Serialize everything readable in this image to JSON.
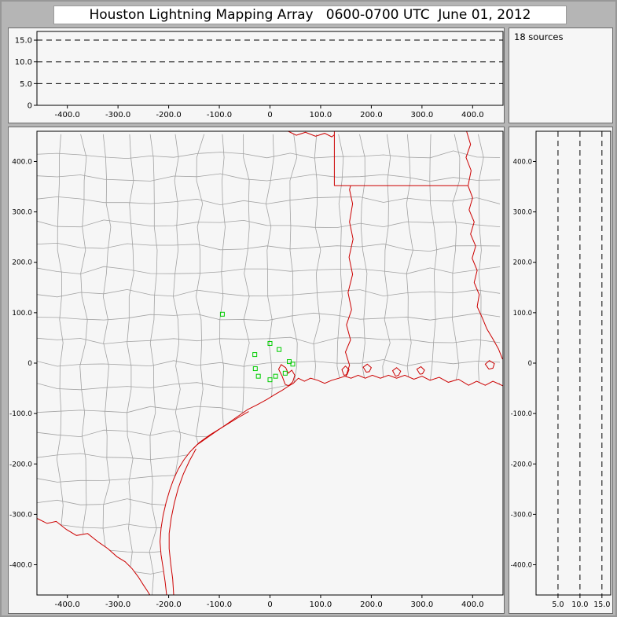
{
  "title": "Houston Lightning Mapping Array   0600-0700 UTC  June 01, 2012",
  "sources_panel": {
    "label": "18 sources"
  },
  "colors": {
    "window_bg": "#b5b5b5",
    "panel_bg": "#f6f6f6",
    "panel_border": "#6b6b6b",
    "frame": "#000000",
    "county_line": "#a2a2a2",
    "state_border": "#cc0000",
    "station_marker": "#00cc00",
    "dashed_line": "#000000",
    "text": "#000000"
  },
  "chart_data": [
    {
      "id": "alt-vs-ew",
      "type": "scatter",
      "panel": "top",
      "xlim": [
        -460,
        460
      ],
      "ylim": [
        0,
        17
      ],
      "x_ticks": [
        -400,
        -300,
        -200,
        -100,
        0,
        100,
        200,
        300,
        400
      ],
      "x_tick_labels": [
        "-400.0",
        "-300.0",
        "-200.0",
        "-100.0",
        "0",
        "100.0",
        "200.0",
        "300.0",
        "400.0"
      ],
      "y_ticks": [
        0,
        5,
        10,
        15
      ],
      "y_tick_labels": [
        "0",
        "5.0",
        "10.0",
        "15.0"
      ],
      "h_gridlines": [
        5,
        10,
        15
      ],
      "points": []
    },
    {
      "id": "plan-view-map",
      "type": "scatter",
      "panel": "main",
      "xlim": [
        -460,
        460
      ],
      "ylim": [
        -460,
        460
      ],
      "x_ticks": [
        -400,
        -300,
        -200,
        -100,
        0,
        100,
        200,
        300,
        400
      ],
      "x_tick_labels": [
        "-400.0",
        "-300.0",
        "-200.0",
        "-100.0",
        "0",
        "100.0",
        "200.0",
        "300.0",
        "400.0"
      ],
      "y_ticks": [
        400,
        300,
        200,
        100,
        0,
        -100,
        -200,
        -300,
        -400
      ],
      "y_tick_labels": [
        "400.0",
        "300.0",
        "200.0",
        "100.0",
        "0",
        "-100.0",
        "-200.0",
        "-300.0",
        "-400.0"
      ],
      "stations": [
        [
          -94,
          97
        ],
        [
          0,
          39
        ],
        [
          18,
          27
        ],
        [
          -30,
          17
        ],
        [
          38,
          3
        ],
        [
          45,
          -2
        ],
        [
          -29,
          -11
        ],
        [
          -23,
          -26
        ],
        [
          0,
          -33
        ],
        [
          11,
          -26
        ],
        [
          30,
          -20
        ]
      ],
      "station_marker": "open-square",
      "counties": {
        "grid_step_km": 46,
        "jitter_km": 16,
        "seed": 11
      },
      "outlines": {
        "coast": [
          [
            460,
            -45
          ],
          [
            440,
            -36
          ],
          [
            425,
            -44
          ],
          [
            408,
            -36
          ],
          [
            392,
            -44
          ],
          [
            372,
            -32
          ],
          [
            352,
            -38
          ],
          [
            334,
            -28
          ],
          [
            316,
            -34
          ],
          [
            300,
            -26
          ],
          [
            284,
            -32
          ],
          [
            266,
            -24
          ],
          [
            250,
            -30
          ],
          [
            234,
            -24
          ],
          [
            218,
            -30
          ],
          [
            202,
            -24
          ],
          [
            188,
            -30
          ],
          [
            174,
            -24
          ],
          [
            160,
            -30
          ],
          [
            148,
            -26
          ],
          [
            136,
            -30
          ],
          [
            122,
            -34
          ],
          [
            108,
            -40
          ],
          [
            94,
            -34
          ],
          [
            80,
            -30
          ],
          [
            68,
            -36
          ],
          [
            56,
            -30
          ],
          [
            46,
            -40
          ],
          [
            36,
            -46
          ],
          [
            24,
            -54
          ],
          [
            10,
            -62
          ],
          [
            -6,
            -72
          ],
          [
            -24,
            -82
          ],
          [
            -44,
            -92
          ],
          [
            -64,
            -106
          ],
          [
            -84,
            -120
          ],
          [
            -104,
            -134
          ],
          [
            -124,
            -148
          ],
          [
            -144,
            -162
          ],
          [
            -158,
            -176
          ],
          [
            -170,
            -192
          ],
          [
            -181,
            -210
          ],
          [
            -190,
            -230
          ],
          [
            -198,
            -252
          ],
          [
            -205,
            -276
          ],
          [
            -211,
            -302
          ],
          [
            -215,
            -328
          ],
          [
            -217,
            -354
          ],
          [
            -215,
            -380
          ],
          [
            -211,
            -406
          ],
          [
            -207,
            -434
          ],
          [
            -204,
            -460
          ]
        ],
        "rio_grande": [
          [
            -460,
            -308
          ],
          [
            -440,
            -318
          ],
          [
            -422,
            -314
          ],
          [
            -402,
            -330
          ],
          [
            -382,
            -342
          ],
          [
            -360,
            -338
          ],
          [
            -340,
            -354
          ],
          [
            -320,
            -368
          ],
          [
            -302,
            -384
          ],
          [
            -286,
            -394
          ],
          [
            -272,
            -408
          ],
          [
            -260,
            -424
          ],
          [
            -250,
            -440
          ],
          [
            -242,
            -452
          ],
          [
            -237,
            -460
          ]
        ],
        "barrier_island": [
          [
            -146,
            -170
          ],
          [
            -159,
            -194
          ],
          [
            -171,
            -220
          ],
          [
            -181,
            -248
          ],
          [
            -189,
            -278
          ],
          [
            -195,
            -308
          ],
          [
            -199,
            -338
          ],
          [
            -199,
            -368
          ],
          [
            -196,
            -398
          ],
          [
            -192,
            -428
          ],
          [
            -190,
            -460
          ]
        ],
        "sabine_river": [
          [
            150,
            -26
          ],
          [
            157,
            -4
          ],
          [
            149,
            22
          ],
          [
            159,
            46
          ],
          [
            151,
            76
          ],
          [
            161,
            106
          ],
          [
            154,
            140
          ],
          [
            163,
            176
          ],
          [
            156,
            210
          ],
          [
            164,
            246
          ],
          [
            157,
            280
          ],
          [
            163,
            316
          ],
          [
            157,
            344
          ],
          [
            159,
            352
          ]
        ],
        "tx_ar_border": [
          [
            127,
            460
          ],
          [
            127,
            352
          ]
        ],
        "ar_la_border": [
          [
            127,
            352
          ],
          [
            390,
            352
          ]
        ],
        "red_river": [
          [
            36,
            460
          ],
          [
            52,
            452
          ],
          [
            70,
            458
          ],
          [
            90,
            450
          ],
          [
            108,
            456
          ],
          [
            122,
            449
          ],
          [
            127,
            453
          ]
        ],
        "mississippi": [
          [
            388,
            460
          ],
          [
            396,
            434
          ],
          [
            387,
            408
          ],
          [
            397,
            382
          ],
          [
            391,
            352
          ],
          [
            400,
            328
          ],
          [
            393,
            304
          ],
          [
            403,
            280
          ],
          [
            396,
            256
          ],
          [
            406,
            232
          ],
          [
            399,
            208
          ],
          [
            409,
            184
          ],
          [
            403,
            160
          ],
          [
            413,
            136
          ],
          [
            409,
            112
          ],
          [
            419,
            90
          ],
          [
            428,
            68
          ],
          [
            440,
            48
          ],
          [
            451,
            28
          ],
          [
            459,
            8
          ]
        ],
        "lagoon_line": [
          [
            -42,
            -96
          ],
          [
            -66,
            -110
          ],
          [
            -92,
            -126
          ],
          [
            -118,
            -142
          ],
          [
            -140,
            -158
          ],
          [
            -152,
            -170
          ]
        ],
        "bays": [
          [
            [
              30,
              -42
            ],
            [
              24,
              -26
            ],
            [
              17,
              -12
            ],
            [
              22,
              -3
            ],
            [
              31,
              -9
            ],
            [
              36,
              -20
            ],
            [
              43,
              -14
            ],
            [
              49,
              -24
            ],
            [
              45,
              -37
            ],
            [
              37,
              -45
            ],
            [
              30,
              -42
            ]
          ],
          [
            [
              146,
              -24
            ],
            [
              142,
              -13
            ],
            [
              149,
              -6
            ],
            [
              156,
              -13
            ],
            [
              152,
              -23
            ],
            [
              146,
              -24
            ]
          ],
          [
            [
              190,
              -18
            ],
            [
              184,
              -8
            ],
            [
              192,
              -2
            ],
            [
              200,
              -9
            ],
            [
              196,
              -17
            ],
            [
              190,
              -18
            ]
          ],
          [
            [
              248,
              -26
            ],
            [
              242,
              -15
            ],
            [
              250,
              -9
            ],
            [
              258,
              -16
            ],
            [
              254,
              -24
            ],
            [
              248,
              -26
            ]
          ],
          [
            [
              296,
              -22
            ],
            [
              290,
              -12
            ],
            [
              298,
              -7
            ],
            [
              305,
              -14
            ],
            [
              301,
              -21
            ],
            [
              296,
              -22
            ]
          ],
          [
            [
              432,
              -12
            ],
            [
              425,
              -2
            ],
            [
              433,
              5
            ],
            [
              443,
              -1
            ],
            [
              440,
              -10
            ],
            [
              432,
              -12
            ]
          ]
        ]
      }
    },
    {
      "id": "alt-vs-ns",
      "type": "scatter",
      "panel": "right",
      "xlim": [
        0,
        17
      ],
      "ylim": [
        -460,
        460
      ],
      "x_ticks": [
        5,
        10,
        15
      ],
      "x_tick_labels": [
        "5.0",
        "10.0",
        "15.0"
      ],
      "y_ticks": [
        400,
        300,
        200,
        100,
        0,
        -100,
        -200,
        -300,
        -400
      ],
      "y_tick_labels": [
        "400.0",
        "300.0",
        "200.0",
        "100.0",
        "0",
        "-100.0",
        "-200.0",
        "-300.0",
        "-400.0"
      ],
      "v_gridlines": [
        5,
        10,
        15
      ],
      "points": []
    }
  ]
}
